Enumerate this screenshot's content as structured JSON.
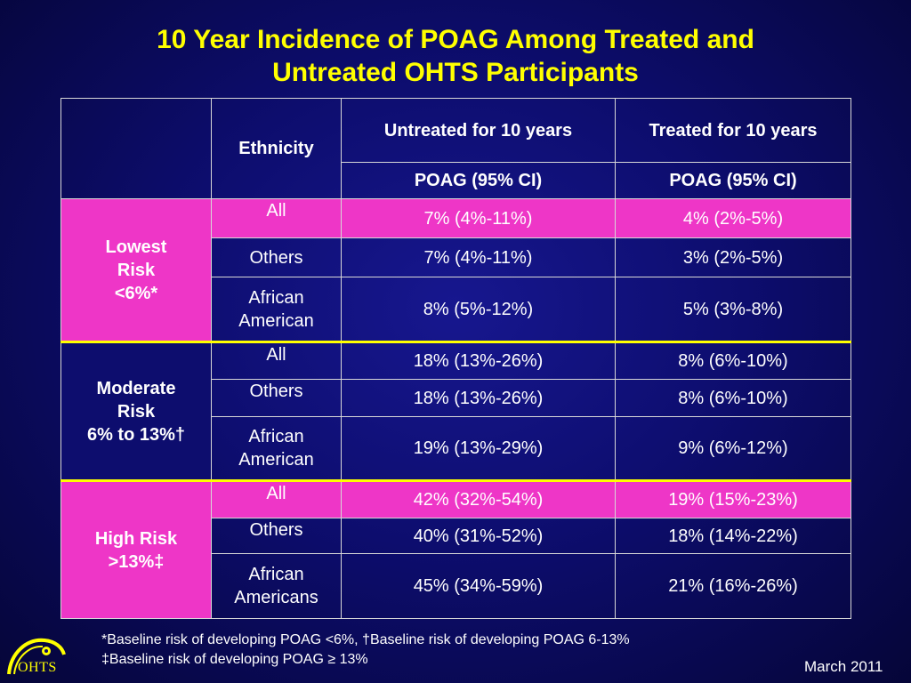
{
  "title": {
    "line1": "10 Year Incidence of POAG Among Treated and",
    "line2": "Untreated OHTS Participants"
  },
  "table": {
    "header": {
      "ethnicity": "Ethnicity",
      "untreated": "Untreated for 10 years",
      "treated": "Treated for 10 years",
      "untreated_sub": "POAG (95% CI)",
      "treated_sub": "POAG (95% CI)"
    },
    "groups": [
      {
        "label_lines": [
          "Lowest",
          "Risk",
          "<6%*"
        ],
        "rows": [
          {
            "ethnicity": "All",
            "untreated": "7% (4%-11%)",
            "treated": "4% (2%-5%)"
          },
          {
            "ethnicity": "Others",
            "untreated": "7% (4%-11%)",
            "treated": "3% (2%-5%)"
          },
          {
            "ethnicity_lines": [
              "African",
              "American"
            ],
            "untreated": "8% (5%-12%)",
            "treated": "5% (3%-8%)"
          }
        ]
      },
      {
        "label_lines": [
          "Moderate",
          "Risk",
          "6% to 13%†"
        ],
        "rows": [
          {
            "ethnicity": "All",
            "untreated": "18% (13%-26%)",
            "treated": "8% (6%-10%)"
          },
          {
            "ethnicity": "Others",
            "untreated": "18% (13%-26%)",
            "treated": "8% (6%-10%)"
          },
          {
            "ethnicity_lines": [
              "African",
              "American"
            ],
            "untreated": "19% (13%-29%)",
            "treated": "9% (6%-12%)"
          }
        ]
      },
      {
        "label_lines": [
          "High Risk",
          ">13%‡"
        ],
        "rows": [
          {
            "ethnicity": "All",
            "untreated": "42% (32%-54%)",
            "treated": "19% (15%-23%)"
          },
          {
            "ethnicity": "Others",
            "untreated": "40% (31%-52%)",
            "treated": "18% (14%-22%)"
          },
          {
            "ethnicity_lines": [
              "African",
              "Americans"
            ],
            "untreated": "45% (34%-59%)",
            "treated": "21% (16%-26%)"
          }
        ]
      }
    ]
  },
  "footnotes": {
    "line1": "*Baseline risk of developing POAG <6%, †Baseline risk of developing POAG 6-13%",
    "line2": "‡Baseline risk of developing POAG ≥ 13%"
  },
  "date": "March 2011",
  "logo": {
    "text": "OHTS",
    "icon": "ohts-eye-logo-icon"
  },
  "colors": {
    "background": "#0d0d6e",
    "title": "#ffff00",
    "highlight": "#ee36c7",
    "separator": "#ffff00"
  }
}
